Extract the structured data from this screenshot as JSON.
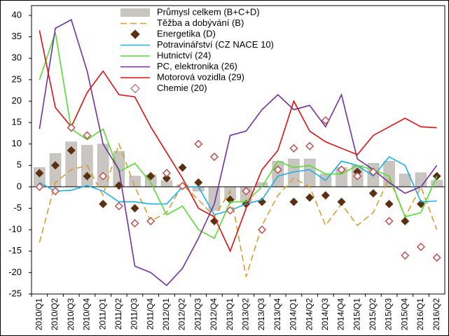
{
  "chart_data": {
    "type": "combo",
    "categories": [
      "2010/Q1",
      "2010/Q2",
      "2010/Q3",
      "2010/Q4",
      "2011/Q1",
      "2011/Q2",
      "2011/Q3",
      "2011/Q4",
      "2012/Q1",
      "2012/Q2",
      "2012/Q3",
      "2012/Q4",
      "2013/Q1",
      "2013/Q2",
      "2013/Q3",
      "2013/Q4",
      "2014/Q1",
      "2014/Q2",
      "2014/Q3",
      "2014/Q4",
      "2015/Q1",
      "2015/Q2",
      "2015/Q3",
      "2015/Q4",
      "2016/Q1",
      "2016/Q2"
    ],
    "ylim": [
      -25,
      40
    ],
    "yticks": [
      -25,
      -20,
      -15,
      -10,
      -5,
      0,
      5,
      10,
      15,
      20,
      25,
      30,
      35,
      40
    ],
    "legend": "upper center",
    "series": [
      {
        "name": "Průmysl celkem (B+C+D)",
        "mark": "bar",
        "color": "#c9c5c1",
        "values": [
          4.5,
          7.8,
          10.5,
          9.7,
          10,
          8.3,
          2.5,
          2.8,
          1.5,
          0.5,
          -1,
          -5.5,
          -3,
          -3.5,
          1,
          6,
          6.5,
          6.5,
          3,
          4.5,
          5,
          5.5,
          6,
          3,
          3.3,
          1.5
        ]
      },
      {
        "name": "Těžba  a dobývání (B)",
        "mark": "dashed-line",
        "color": "#d4a030",
        "values": [
          -13,
          1,
          4,
          5,
          -2,
          10,
          0,
          -8,
          -6,
          0.5,
          -3,
          -7,
          -1,
          -21,
          -9,
          -2,
          2,
          0,
          -9,
          -4,
          -9,
          -6,
          2,
          -7,
          0,
          -10
        ]
      },
      {
        "name": "Energetika (D)",
        "mark": "diamond",
        "color": "#5a3010",
        "values": [
          3.2,
          5,
          8.5,
          2.5,
          -4,
          0.3,
          -5,
          2.5,
          2,
          4.5,
          1,
          -8,
          -3,
          -4,
          -3.5,
          4,
          -3.5,
          -2.5,
          -2,
          -3.5,
          3.5,
          -1.5,
          -4,
          -8,
          -4,
          2.5
        ]
      },
      {
        "name": "Potravinářství (CZ NACE 10)",
        "mark": "line",
        "color": "#1ab0e8",
        "values": [
          1,
          -1,
          -0.8,
          0.3,
          -1,
          -3.5,
          -3.5,
          -4,
          -4,
          0,
          0,
          -6.5,
          -5.5,
          -4,
          -3,
          2.5,
          3.5,
          4,
          1.5,
          6,
          5,
          2.5,
          7,
          5,
          -3.5,
          -3.3
        ]
      },
      {
        "name": "Hutnictví (24)",
        "mark": "line",
        "color": "#55dd33",
        "values": [
          25,
          36,
          13.5,
          11,
          13.5,
          3.5,
          5.5,
          1,
          -6.5,
          -4.5,
          -10,
          -12,
          -3.5,
          -3.5,
          0,
          6,
          4.5,
          5,
          3,
          3,
          5,
          4,
          2.5,
          -7,
          -6,
          2.5
        ]
      },
      {
        "name": "PC, elektronika (26)",
        "mark": "line",
        "color": "#7030a0",
        "values": [
          13.5,
          37,
          39,
          27,
          10,
          4,
          -18.5,
          -20,
          -23,
          -19,
          -12,
          -4,
          12,
          13,
          18,
          21.5,
          18,
          19,
          14,
          21.5,
          6.5,
          4,
          1,
          -1.5,
          0,
          5
        ]
      },
      {
        "name": "Motorová vozidla (29)",
        "mark": "line",
        "color": "#e01010",
        "values": [
          36.5,
          18.5,
          14,
          22,
          27,
          21.5,
          21,
          14,
          8,
          2,
          -5,
          -7,
          -15,
          -5,
          4,
          8.5,
          20,
          13,
          10.5,
          9,
          7.5,
          12,
          14,
          16,
          14,
          13.8
        ]
      },
      {
        "name": "Chemie (20)",
        "mark": "hollow-diamond",
        "color": "#c05050",
        "values": [
          0,
          -1,
          13.8,
          12,
          2.5,
          -4.5,
          -8.5,
          -8,
          3.2,
          0.2,
          10,
          7,
          -5.5,
          -1,
          -10,
          4,
          9,
          9.5,
          15.5,
          4,
          2.5,
          3.5,
          -8,
          -16,
          -14,
          -16.5
        ]
      }
    ]
  }
}
